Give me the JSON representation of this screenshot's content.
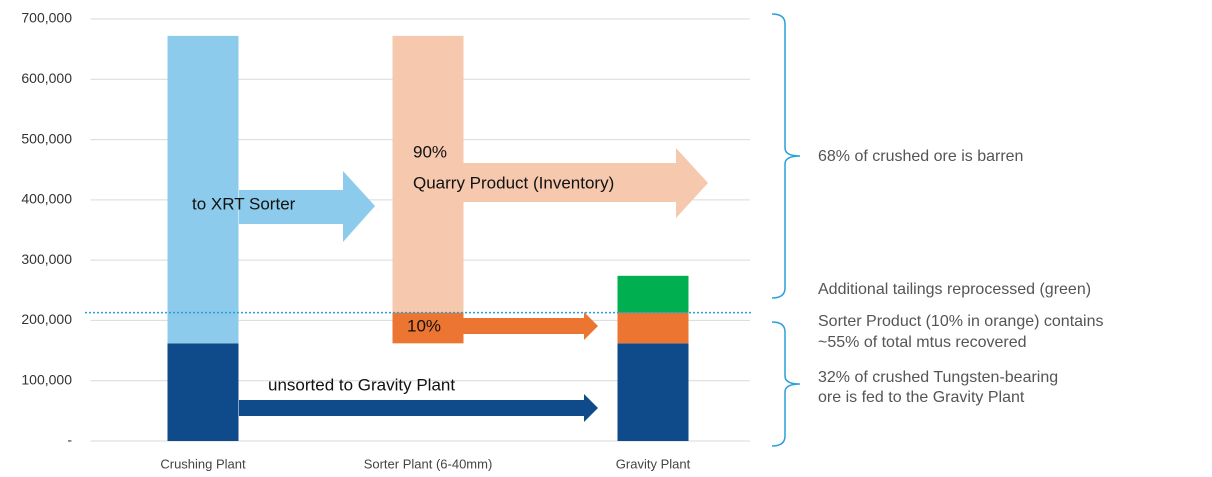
{
  "chart_data": {
    "type": "bar",
    "stacked": true,
    "categories": [
      "Crushing Plant",
      "Sorter Plant (6-40mm)",
      "Gravity Plant"
    ],
    "series": [
      {
        "values": [
          162000,
          162000,
          162000
        ],
        "colors": [
          "#0f4a8a",
          null,
          "#0f4a8a"
        ]
      },
      {
        "values": [
          null,
          51000,
          51000
        ],
        "colors": [
          null,
          "#ed7532",
          "#ed7532"
        ]
      },
      {
        "values": [
          null,
          null,
          61000
        ],
        "colors": [
          null,
          null,
          "#00b050"
        ]
      },
      {
        "values": [
          510000,
          459000,
          null
        ],
        "colors": [
          "#8ccbeb",
          "#f6c8ae",
          null
        ]
      }
    ],
    "ylim": [
      0,
      700000
    ],
    "yticks": [
      {
        "value": 0,
        "label": "-"
      },
      {
        "value": 100000,
        "label": "100,000"
      },
      {
        "value": 200000,
        "label": "200,000"
      },
      {
        "value": 300000,
        "label": "300,000"
      },
      {
        "value": 400000,
        "label": "400,000"
      },
      {
        "value": 500000,
        "label": "500,000"
      },
      {
        "value": 600000,
        "label": "600,000"
      },
      {
        "value": 700000,
        "label": "700,000"
      }
    ],
    "grid": true,
    "reference_line": {
      "value": 213000,
      "color": "#2aa0d8"
    },
    "arrow_labels": [
      "to XRT Sorter",
      "90%",
      "Quarry Product (Inventory)",
      "10%",
      "unsorted to Gravity Plant"
    ],
    "annotations": [
      "68% of crushed ore is barren",
      "Additional tailings reprocessed (green)",
      "Sorter Product (10% in orange) contains",
      "~55% of total mtus recovered",
      "32% of crushed Tungsten-bearing",
      "ore is fed to the Gravity Plant"
    ]
  }
}
